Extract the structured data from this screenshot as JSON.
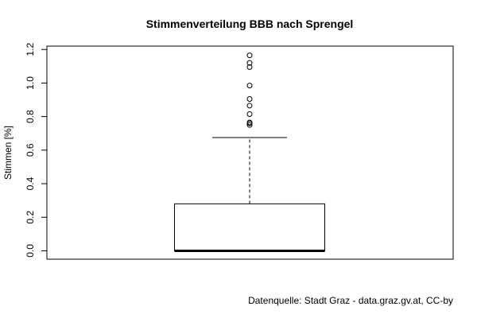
{
  "chart_data": {
    "type": "boxplot",
    "title": "Stimmenverteilung BBB nach Sprengel",
    "xlabel": "",
    "ylabel": "Stimmen [%]",
    "ylim": [
      -0.05,
      1.22
    ],
    "yticks": [
      0.0,
      0.2,
      0.4,
      0.6,
      0.8,
      1.0,
      1.2
    ],
    "ytick_labels": [
      "0.0",
      "0.2",
      "0.4",
      "0.6",
      "0.8",
      "1.0",
      "1.2"
    ],
    "grid": false,
    "box": {
      "min": 0.0,
      "q1": 0.0,
      "median": 0.0,
      "q3": 0.28,
      "whisker_low": 0.0,
      "whisker_high": 0.675
    },
    "outliers": [
      0.75,
      0.76,
      0.765,
      0.815,
      0.865,
      0.905,
      0.985,
      1.095,
      1.12,
      1.165
    ],
    "colors": {
      "box_fill": "#ffffff",
      "stroke": "#000000"
    }
  },
  "footer": {
    "source": "Datenquelle: Stadt Graz - data.graz.gv.at, CC-by"
  }
}
